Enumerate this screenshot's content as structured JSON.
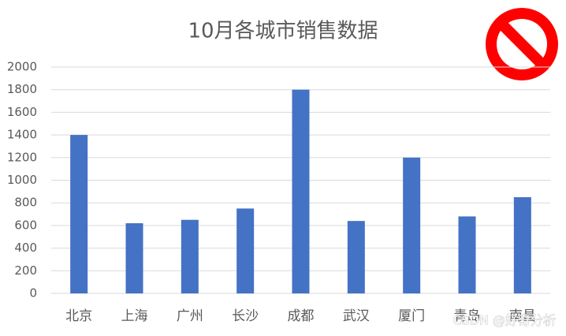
{
  "chart_data": {
    "type": "bar",
    "title": "10月各城市销售数据",
    "categories": [
      "北京",
      "上海",
      "广州",
      "长沙",
      "成都",
      "武汉",
      "厦门",
      "青岛",
      "南昌"
    ],
    "values": [
      1400,
      620,
      650,
      750,
      1800,
      640,
      1200,
      680,
      850
    ],
    "color": "#4472c4",
    "ylim": [
      0,
      2000
    ],
    "yticks": [
      0,
      200,
      400,
      600,
      800,
      1000,
      1200,
      1400,
      1600,
      1800,
      2000
    ],
    "grid": true
  },
  "watermark": "CSDN @好奇分析"
}
